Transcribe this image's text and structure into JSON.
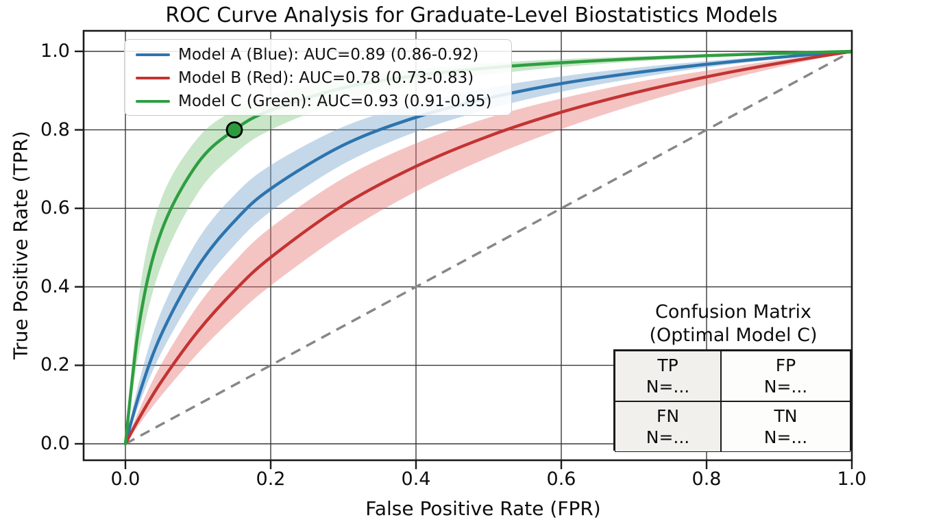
{
  "title": "ROC Curve Analysis for Graduate-Level Biostatistics Models",
  "axes": {
    "xlabel": "False Positive Rate (FPR)",
    "ylabel": "True Positive Rate (TPR)",
    "x_tick_labels": [
      "0.0",
      "0.2",
      "0.4",
      "0.6",
      "0.8",
      "1.0"
    ],
    "y_tick_labels": [
      "0.0",
      "0.2",
      "0.4",
      "0.6",
      "0.8",
      "1.0"
    ]
  },
  "confusion_matrix": {
    "title_line1": "Confusion Matrix",
    "title_line2": "(Optimal Model C)",
    "cells": [
      {
        "label": "TP",
        "value": "N=..."
      },
      {
        "label": "FP",
        "value": "N=..."
      },
      {
        "label": "FN",
        "value": "N=..."
      },
      {
        "label": "TN",
        "value": "N=..."
      }
    ]
  },
  "chart_data": {
    "type": "line",
    "title": "ROC Curve Analysis for Graduate-Level Biostatistics Models",
    "xlabel": "False Positive Rate (FPR)",
    "ylabel": "True Positive Rate (TPR)",
    "xlim": [
      0,
      1
    ],
    "ylim": [
      0,
      1
    ],
    "grid": true,
    "grid_color": "#383838",
    "legend_position": "upper left",
    "x_ticks": [
      0,
      0.2,
      0.4,
      0.6,
      0.8,
      1.0
    ],
    "y_ticks": [
      0,
      0.2,
      0.4,
      0.6,
      0.8,
      1.0
    ],
    "x": [
      0,
      0.02,
      0.05,
      0.1,
      0.15,
      0.2,
      0.3,
      0.4,
      0.5,
      0.6,
      0.7,
      0.8,
      0.9,
      1.0
    ],
    "series": [
      {
        "name": "Model A (Blue): AUC=0.89 (0.86-0.92)",
        "auc": 0.89,
        "auc_ci": [
          0.86,
          0.92
        ],
        "color": "#2e74ad",
        "band_color": "rgba(125,168,208,0.45)",
        "values": [
          0,
          0.132,
          0.281,
          0.452,
          0.567,
          0.65,
          0.761,
          0.832,
          0.881,
          0.918,
          0.945,
          0.967,
          0.985,
          1
        ],
        "band_low": [
          0,
          0.106,
          0.234,
          0.392,
          0.506,
          0.592,
          0.713,
          0.795,
          0.853,
          0.897,
          0.931,
          0.959,
          0.981,
          1
        ],
        "band_high": [
          0,
          0.167,
          0.34,
          0.521,
          0.634,
          0.71,
          0.808,
          0.867,
          0.907,
          0.936,
          0.958,
          0.975,
          0.989,
          1
        ]
      },
      {
        "name": "Model B (Red): AUC=0.78 (0.73-0.83)",
        "auc": 0.78,
        "auc_ci": [
          0.73,
          0.83
        ],
        "color": "#c23432",
        "band_color": "rgba(228,115,113,0.42)",
        "values": [
          0,
          0.069,
          0.16,
          0.287,
          0.39,
          0.475,
          0.608,
          0.707,
          0.784,
          0.845,
          0.894,
          0.935,
          0.97,
          1
        ],
        "band_low": [
          0,
          0.052,
          0.124,
          0.231,
          0.323,
          0.403,
          0.536,
          0.643,
          0.73,
          0.802,
          0.863,
          0.915,
          0.96,
          1
        ],
        "band_high": [
          0,
          0.091,
          0.205,
          0.353,
          0.464,
          0.551,
          0.677,
          0.766,
          0.831,
          0.88,
          0.92,
          0.951,
          0.978,
          1
        ]
      },
      {
        "name": "Model C (Green): AUC=0.93 (0.91-0.95)",
        "auc": 0.93,
        "auc_ci": [
          0.91,
          0.95
        ],
        "color": "#2f9e41",
        "band_color": "rgba(126,196,126,0.42)",
        "values": [
          0,
          0.317,
          0.544,
          0.716,
          0.8,
          0.85,
          0.907,
          0.938,
          0.958,
          0.971,
          0.981,
          0.989,
          0.995,
          1
        ],
        "band_low": [
          0,
          0.246,
          0.457,
          0.64,
          0.738,
          0.8,
          0.873,
          0.914,
          0.941,
          0.96,
          0.974,
          0.985,
          0.993,
          1
        ],
        "band_high": [
          0,
          0.395,
          0.627,
          0.78,
          0.85,
          0.889,
          0.932,
          0.955,
          0.97,
          0.98,
          0.987,
          0.992,
          0.996,
          1
        ]
      }
    ],
    "reference_line": {
      "name": "chance-diagonal",
      "from": [
        0,
        0
      ],
      "to": [
        1,
        1
      ],
      "color": "#878787",
      "dash": "15 10"
    },
    "optimal_point": {
      "series": "Model C",
      "x": 0.15,
      "y": 0.8,
      "fill": "#2c9b3f",
      "edge": "#000000",
      "radius": 11
    }
  }
}
